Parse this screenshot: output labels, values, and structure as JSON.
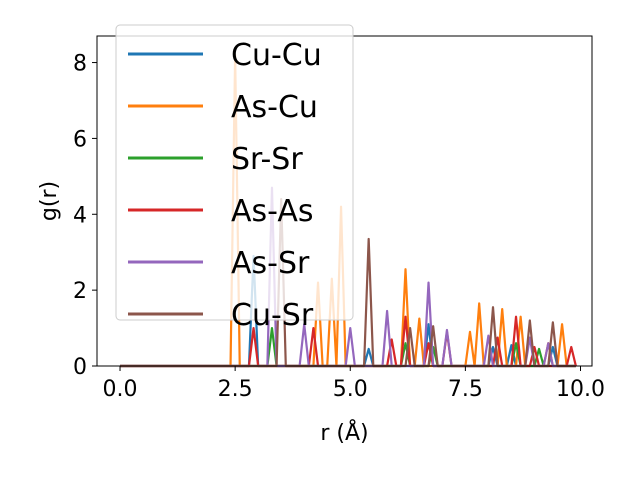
{
  "chart_data": {
    "type": "line",
    "xlabel": "r (Å)",
    "ylabel": "g(r)",
    "xlim": [
      -0.5,
      10.25
    ],
    "ylim": [
      0,
      8.7
    ],
    "xticks": [
      0.0,
      2.5,
      5.0,
      7.5,
      10.0
    ],
    "xtick_labels": [
      "0.0",
      "2.5",
      "5.0",
      "7.5",
      "10.0"
    ],
    "yticks": [
      0,
      2,
      4,
      6,
      8
    ],
    "ytick_labels": [
      "0",
      "2",
      "4",
      "6",
      "8"
    ],
    "grid": false,
    "legend_position": "top-left",
    "series": [
      {
        "name": "Cu-Cu",
        "color": "#1f77b4",
        "peaks": [
          [
            2.9,
            2.9
          ],
          [
            5.4,
            0.45
          ],
          [
            6.7,
            1.1
          ],
          [
            8.1,
            0.5
          ],
          [
            8.5,
            0.55
          ],
          [
            9.4,
            0.5
          ]
        ]
      },
      {
        "name": "As-Cu",
        "color": "#ff7f0e",
        "peaks": [
          [
            2.45,
            8.2
          ],
          [
            4.25,
            2.2
          ],
          [
            4.6,
            2.3
          ],
          [
            4.85,
            4.2
          ],
          [
            6.2,
            2.55
          ],
          [
            6.45,
            1.25
          ],
          [
            7.55,
            0.9
          ],
          [
            7.85,
            1.65
          ],
          [
            8.25,
            1.5
          ],
          [
            8.65,
            1.3
          ],
          [
            9.25,
            0.6
          ],
          [
            9.6,
            1.1
          ]
        ]
      },
      {
        "name": "Sr-Sr",
        "color": "#2ca02c",
        "peaks": [
          [
            3.3,
            1.0
          ],
          [
            6.2,
            0.6
          ],
          [
            6.8,
            0.5
          ],
          [
            8.6,
            0.6
          ],
          [
            9.1,
            0.45
          ]
        ]
      },
      {
        "name": "As-As",
        "color": "#d62728",
        "peaks": [
          [
            2.85,
            1.0
          ],
          [
            4.2,
            1.0
          ],
          [
            5.9,
            0.7
          ],
          [
            6.2,
            1.3
          ],
          [
            6.7,
            0.6
          ],
          [
            7.1,
            0.9
          ],
          [
            8.15,
            0.75
          ],
          [
            8.55,
            1.3
          ],
          [
            9.0,
            0.5
          ],
          [
            9.8,
            0.5
          ]
        ]
      },
      {
        "name": "As-Sr",
        "color": "#9467bd",
        "peaks": [
          [
            3.25,
            4.7
          ],
          [
            4.0,
            1.1
          ],
          [
            5.0,
            1.0
          ],
          [
            5.8,
            1.45
          ],
          [
            6.7,
            2.2
          ],
          [
            7.1,
            0.95
          ],
          [
            8.0,
            0.8
          ],
          [
            8.9,
            0.75
          ],
          [
            9.35,
            0.6
          ]
        ]
      },
      {
        "name": "Cu-Sr",
        "color": "#8c564b",
        "peaks": [
          [
            3.45,
            4.4
          ],
          [
            5.4,
            3.35
          ],
          [
            6.3,
            1.0
          ],
          [
            6.85,
            1.05
          ],
          [
            8.05,
            1.55
          ],
          [
            8.9,
            1.2
          ],
          [
            9.45,
            1.15
          ]
        ]
      }
    ]
  }
}
